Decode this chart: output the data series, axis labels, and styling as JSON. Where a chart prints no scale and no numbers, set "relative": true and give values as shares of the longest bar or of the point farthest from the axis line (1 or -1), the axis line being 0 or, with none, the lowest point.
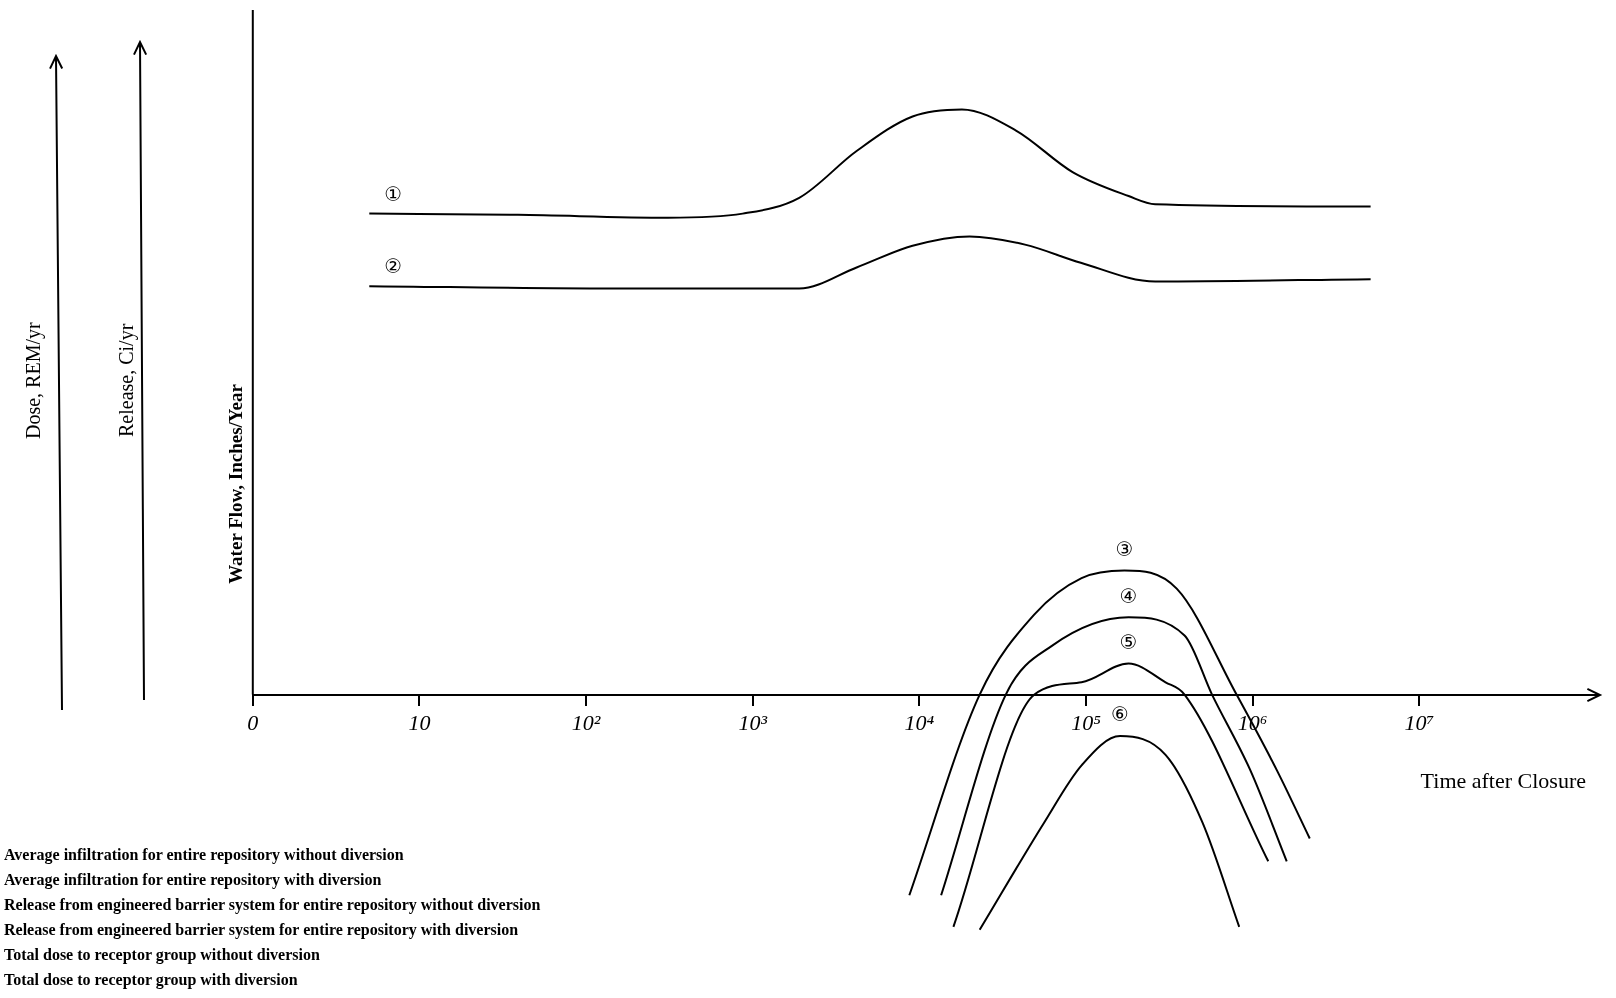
{
  "chart_data": {
    "type": "line",
    "relative": true,
    "xlabel": "Time after Closure",
    "ylabel": "Water Flow, Inches/Year",
    "log": "x",
    "xlim": [
      0,
      100000000
    ],
    "xticks": [
      0,
      10,
      {
        "value": 100,
        "label": "10²"
      },
      {
        "value": 1000,
        "label": "10³"
      },
      {
        "value": 10000,
        "label": "10⁴"
      },
      {
        "value": 100000,
        "label": "10⁵"
      },
      {
        "value": 1000000,
        "label": "10⁶"
      },
      {
        "value": 10000000,
        "label": "10⁷"
      }
    ],
    "grid": false,
    "legend": false,
    "marker": "none",
    "line_style": "solid",
    "series": [
      {
        "name": "①",
        "color": "#000000",
        "x": [
          5,
          39,
          310,
          870,
          1900,
          4200,
          9100,
          18000,
          38000,
          83000,
          180000,
          260000,
          5100000
        ],
        "values": [
          0.822,
          0.82,
          0.815,
          0.822,
          0.849,
          0.929,
          0.988,
          1,
          0.964,
          0.893,
          0.852,
          0.838,
          0.834
        ]
      },
      {
        "name": "②",
        "color": "#000000",
        "x": [
          5,
          140,
          1900,
          4200,
          9100,
          20000,
          43000,
          93000,
          260000,
          5100000
        ],
        "values": [
          0.698,
          0.694,
          0.694,
          0.73,
          0.767,
          0.783,
          0.769,
          0.738,
          0.706,
          0.71
        ]
      },
      {
        "name": "③",
        "color": "#000000",
        "x": [
          8700,
          23000,
          49000,
          94000,
          170000,
          350000,
          800000,
          1400000,
          2200000
        ],
        "values": [
          -0.343,
          0,
          0.137,
          0.199,
          0.212,
          0.181,
          0,
          -0.13,
          -0.246
        ]
      },
      {
        "name": "④",
        "color": "#000000",
        "x": [
          13500,
          33000,
          63000,
          180000,
          390000,
          570000,
          970000,
          1600000
        ],
        "values": [
          -0.343,
          0,
          0.084,
          0.132,
          0.101,
          0,
          -0.13,
          -0.285
        ]
      },
      {
        "name": "⑤",
        "color": "#000000",
        "x": [
          16000,
          49000,
          94000,
          180000,
          300000,
          390000,
          1240000
        ],
        "values": [
          -0.397,
          0,
          0.021,
          0.053,
          0.021,
          0,
          -0.285
        ]
      },
      {
        "name": "⑥",
        "color": "#000000",
        "x": [
          23000,
          56000,
          94000,
          160000,
          300000,
          500000,
          830000
        ],
        "values": [
          -0.402,
          -0.219,
          -0.121,
          -0.071,
          -0.103,
          -0.219,
          -0.397
        ]
      }
    ],
    "annotations": [
      "Dose, REM/yr",
      "Release, Ci/yr",
      "Average infiltration for entire repository without diversion",
      "Average infiltration for entire repository with diversion",
      "Release from engineered barrier system for entire repository without diversion",
      "Release from engineered barrier system for entire repository with diversion",
      "Total dose to receptor group without diversion",
      "Total dose to receptor group with diversion"
    ]
  }
}
